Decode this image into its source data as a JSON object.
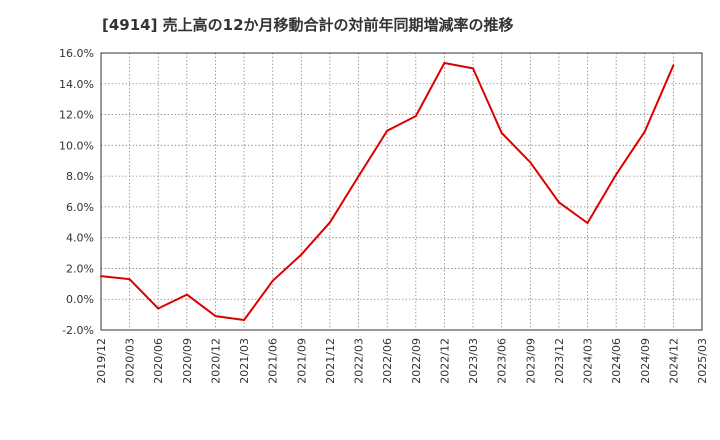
{
  "chart_data": {
    "type": "line",
    "title": "[4914]  売上高の12か月移動合計の対前年同期増減率の推移",
    "xlabel": "",
    "ylabel": "",
    "x": [
      "2019/12",
      "2020/03",
      "2020/06",
      "2020/09",
      "2020/12",
      "2021/03",
      "2021/06",
      "2021/09",
      "2021/12",
      "2022/03",
      "2022/06",
      "2022/09",
      "2022/12",
      "2023/03",
      "2023/06",
      "2023/09",
      "2023/12",
      "2024/03",
      "2024/06",
      "2024/09",
      "2024/12",
      "2025/03"
    ],
    "series": [
      {
        "name": "売上高の12か月移動合計の対前年同期増減率",
        "color": "#dd0000",
        "values": [
          1.5,
          1.3,
          -0.6,
          0.3,
          -1.1,
          -1.35,
          1.2,
          2.9,
          5.0,
          8.0,
          10.95,
          11.9,
          15.35,
          15.0,
          10.8,
          8.9,
          6.3,
          4.95,
          8.1,
          10.9,
          15.2,
          null
        ]
      }
    ],
    "ylim": [
      -2,
      16
    ],
    "yticks": [
      -2,
      0,
      2,
      4,
      6,
      8,
      10,
      12,
      14,
      16
    ],
    "ytick_labels": [
      "-2.0%",
      "0.0%",
      "2.0%",
      "4.0%",
      "6.0%",
      "8.0%",
      "10.0%",
      "12.0%",
      "14.0%",
      "16.0%"
    ],
    "grid": true,
    "legend": "none"
  }
}
